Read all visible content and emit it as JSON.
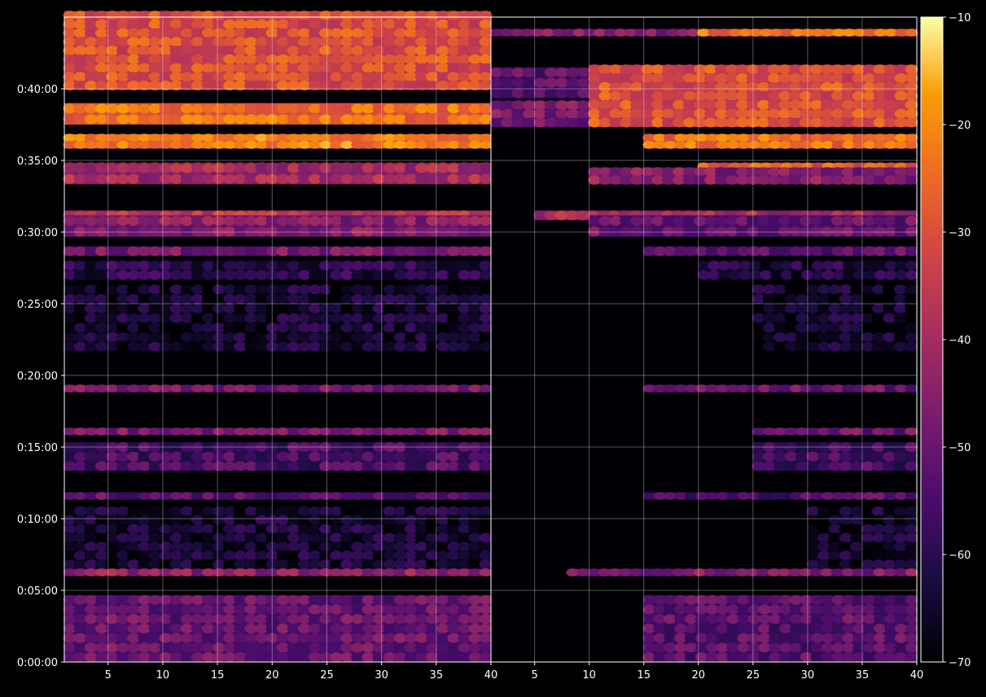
{
  "chart_data": {
    "type": "heatmap",
    "title": "",
    "xlabel": "",
    "ylabel": "",
    "colormap": "inferno",
    "colorbar": {
      "range": [
        -70,
        -10
      ],
      "ticks": [
        {
          "value": -10,
          "label": "−10"
        },
        {
          "value": -20,
          "label": "−20"
        },
        {
          "value": -30,
          "label": "−30"
        },
        {
          "value": -40,
          "label": "−40"
        },
        {
          "value": -50,
          "label": "−50"
        },
        {
          "value": -60,
          "label": "−60"
        },
        {
          "value": -70,
          "label": "−70"
        }
      ]
    },
    "y_axis": {
      "range_seconds": [
        0,
        2700
      ],
      "ticks": [
        {
          "value": 0,
          "label": "0:00:00"
        },
        {
          "value": 300,
          "label": "0:05:00"
        },
        {
          "value": 600,
          "label": "0:10:00"
        },
        {
          "value": 900,
          "label": "0:15:00"
        },
        {
          "value": 1200,
          "label": "0:20:00"
        },
        {
          "value": 1500,
          "label": "0:25:00"
        },
        {
          "value": 1800,
          "label": "0:30:00"
        },
        {
          "value": 2100,
          "label": "0:35:00"
        },
        {
          "value": 2400,
          "label": "0:40:00"
        }
      ]
    },
    "grid": true,
    "panels": [
      {
        "x_range": [
          1,
          40
        ],
        "x_ticks": [
          {
            "value": 5,
            "label": "5"
          },
          {
            "value": 10,
            "label": "10"
          },
          {
            "value": 15,
            "label": "15"
          },
          {
            "value": 20,
            "label": "20"
          },
          {
            "value": 25,
            "label": "25"
          },
          {
            "value": 30,
            "label": "30"
          },
          {
            "value": 35,
            "label": "35"
          },
          {
            "value": 40,
            "label": "40"
          }
        ],
        "bands": [
          {
            "t": 2620,
            "dt": 30,
            "level": -22,
            "x_from": 1,
            "x_to": 40
          },
          {
            "t": 2395,
            "dt": 330,
            "level": -30,
            "x_from": 1,
            "x_to": 40
          },
          {
            "t": 2250,
            "dt": 90,
            "level": -24,
            "x_from": 1,
            "x_to": 40
          },
          {
            "t": 2150,
            "dt": 60,
            "level": -22,
            "x_from": 1,
            "x_to": 40
          },
          {
            "t": 2060,
            "dt": 30,
            "level": -24,
            "x_from": 1,
            "x_to": 40
          },
          {
            "t": 2000,
            "dt": 90,
            "level": -40,
            "x_from": 1,
            "x_to": 40
          },
          {
            "t": 1850,
            "dt": 40,
            "level": -35,
            "x_from": 1,
            "x_to": 40
          },
          {
            "t": 1780,
            "dt": 90,
            "level": -45,
            "x_from": 1,
            "x_to": 40
          },
          {
            "t": 1700,
            "dt": 40,
            "level": -48,
            "x_from": 1,
            "x_to": 40
          },
          {
            "t": 1600,
            "dt": 80,
            "level": -60,
            "x_from": 1,
            "x_to": 40
          },
          {
            "t": 1300,
            "dt": 280,
            "level": -64,
            "x_from": 1,
            "x_to": 40
          },
          {
            "t": 1130,
            "dt": 30,
            "level": -48,
            "x_from": 1,
            "x_to": 40
          },
          {
            "t": 950,
            "dt": 30,
            "level": -48,
            "x_from": 1,
            "x_to": 40
          },
          {
            "t": 800,
            "dt": 120,
            "level": -55,
            "x_from": 1,
            "x_to": 40
          },
          {
            "t": 680,
            "dt": 30,
            "level": -52,
            "x_from": 1,
            "x_to": 40
          },
          {
            "t": 390,
            "dt": 260,
            "level": -64,
            "x_from": 1,
            "x_to": 40
          },
          {
            "t": 360,
            "dt": 30,
            "level": -44,
            "x_from": 1,
            "x_to": 40
          },
          {
            "t": 0,
            "dt": 280,
            "level": -50,
            "x_from": 1,
            "x_to": 40
          }
        ]
      },
      {
        "x_range": [
          1,
          40
        ],
        "x_ticks": [
          {
            "value": 5,
            "label": "5"
          },
          {
            "value": 10,
            "label": "10"
          },
          {
            "value": 15,
            "label": "15"
          },
          {
            "value": 20,
            "label": "20"
          },
          {
            "value": 25,
            "label": "25"
          },
          {
            "value": 30,
            "label": "30"
          },
          {
            "value": 35,
            "label": "35"
          },
          {
            "value": 40,
            "label": "40"
          }
        ],
        "bands": [
          {
            "t": 2620,
            "dt": 30,
            "level": -45,
            "x_from": 1,
            "x_to": 20
          },
          {
            "t": 2620,
            "dt": 30,
            "level": -24,
            "x_from": 20,
            "x_to": 40
          },
          {
            "t": 2360,
            "dt": 130,
            "level": -52,
            "x_from": 1,
            "x_to": 10
          },
          {
            "t": 2240,
            "dt": 110,
            "level": -48,
            "x_from": 1,
            "x_to": 10
          },
          {
            "t": 2240,
            "dt": 260,
            "level": -30,
            "x_from": 10,
            "x_to": 40
          },
          {
            "t": 2150,
            "dt": 60,
            "level": -24,
            "x_from": 15,
            "x_to": 40
          },
          {
            "t": 2060,
            "dt": 30,
            "level": -28,
            "x_from": 20,
            "x_to": 40
          },
          {
            "t": 2000,
            "dt": 70,
            "level": -45,
            "x_from": 10,
            "x_to": 40
          },
          {
            "t": 1850,
            "dt": 40,
            "level": -40,
            "x_from": 5,
            "x_to": 40
          },
          {
            "t": 1780,
            "dt": 90,
            "level": -50,
            "x_from": 10,
            "x_to": 40
          },
          {
            "t": 1700,
            "dt": 40,
            "level": -52,
            "x_from": 15,
            "x_to": 40
          },
          {
            "t": 1600,
            "dt": 80,
            "level": -62,
            "x_from": 20,
            "x_to": 40
          },
          {
            "t": 1300,
            "dt": 280,
            "level": -65,
            "x_from": 25,
            "x_to": 40
          },
          {
            "t": 1130,
            "dt": 30,
            "level": -50,
            "x_from": 15,
            "x_to": 40
          },
          {
            "t": 950,
            "dt": 30,
            "level": -50,
            "x_from": 25,
            "x_to": 40
          },
          {
            "t": 800,
            "dt": 120,
            "level": -56,
            "x_from": 25,
            "x_to": 40
          },
          {
            "t": 680,
            "dt": 30,
            "level": -54,
            "x_from": 15,
            "x_to": 40
          },
          {
            "t": 390,
            "dt": 260,
            "level": -65,
            "x_from": 30,
            "x_to": 40
          },
          {
            "t": 360,
            "dt": 30,
            "level": -46,
            "x_from": 8,
            "x_to": 40
          },
          {
            "t": 0,
            "dt": 280,
            "level": -52,
            "x_from": 15,
            "x_to": 40
          }
        ]
      }
    ]
  }
}
